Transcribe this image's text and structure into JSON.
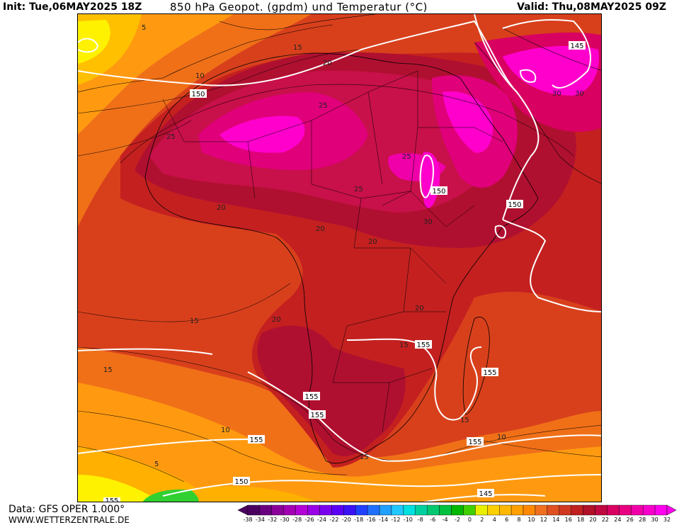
{
  "header": {
    "init": "Init: Tue,06MAY2025 18Z",
    "title": "850 hPa Geopot. (gpdm) und Temperatur (°C)",
    "valid": "Valid: Thu,08MAY2025 09Z"
  },
  "footer": {
    "data_source": "Data: GFS OPER 1.000°",
    "website": "WWW.WETTERZENTRALE.DE"
  },
  "colorbar": {
    "labels": [
      "-38",
      "-34",
      "-32",
      "-30",
      "-28",
      "-26",
      "-24",
      "-22",
      "-20",
      "-18",
      "-16",
      "-14",
      "-12",
      "-10",
      "-8",
      "-6",
      "-4",
      "-2",
      "0",
      "2",
      "4",
      "6",
      "8",
      "10",
      "12",
      "14",
      "16",
      "18",
      "20",
      "22",
      "24",
      "26",
      "28",
      "30",
      "32"
    ],
    "colors": [
      "#4b0060",
      "#6a0080",
      "#8a0099",
      "#a300b3",
      "#b300d6",
      "#9a00e6",
      "#7a00f0",
      "#5a00f5",
      "#3a10f5",
      "#2040ff",
      "#2070ff",
      "#20a0ff",
      "#20c8ff",
      "#00e0e0",
      "#00d0a0",
      "#00c870",
      "#00c040",
      "#00b800",
      "#40d000",
      "#e8f000",
      "#ffd000",
      "#ffb800",
      "#ffa000",
      "#ff8800",
      "#f07020",
      "#e05020",
      "#d03820",
      "#c02020",
      "#b01028",
      "#c00840",
      "#d80060",
      "#e80080",
      "#f000a8",
      "#f800cc",
      "#ff00ee"
    ]
  },
  "contour_labels": {
    "geopotential": [
      "150",
      "150",
      "150",
      "155",
      "155",
      "155",
      "155",
      "155",
      "155",
      "150",
      "145",
      "145",
      "155"
    ],
    "temperature": [
      "5",
      "15",
      "10",
      "25",
      "20",
      "25",
      "20",
      "25",
      "25",
      "20",
      "20",
      "30",
      "30",
      "20",
      "20",
      "15",
      "15",
      "15",
      "10",
      "5",
      "15",
      "10",
      "15",
      "30"
    ]
  },
  "colors": {
    "cool_yellow": "#fff200",
    "orange": "#ff9a10",
    "dark_orange": "#f07018",
    "red_orange": "#d8401c",
    "red": "#c42020",
    "dark_red": "#b01030",
    "crimson": "#c8104a",
    "magenta": "#e0007a",
    "hot_pink": "#ff00cc",
    "green": "#30d030"
  }
}
